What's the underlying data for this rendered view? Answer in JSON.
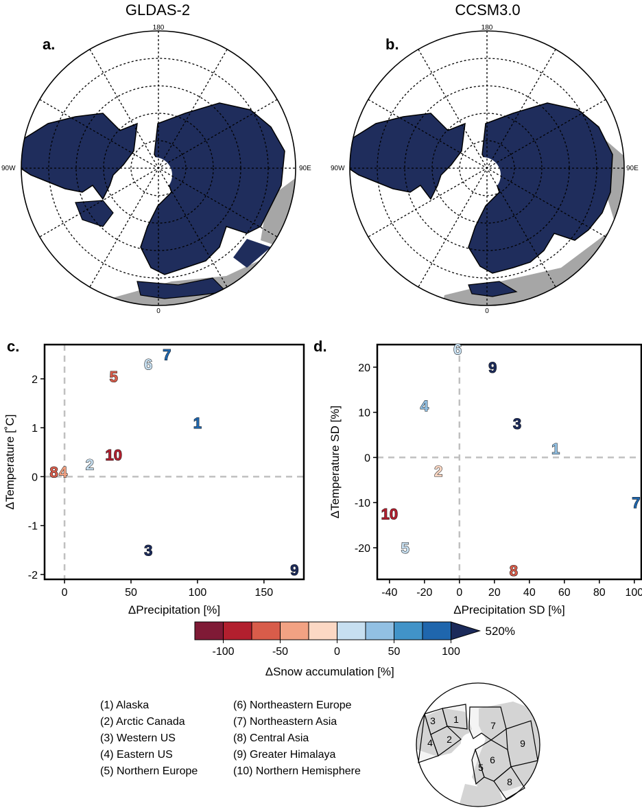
{
  "maps": [
    {
      "id": "a",
      "title": "GLDAS-2",
      "panel": "a.",
      "lon_labels": {
        "top": "180",
        "bottom": "0",
        "left": "90W",
        "right": "90E"
      }
    },
    {
      "id": "b",
      "title": "CCSM3.0",
      "panel": "b.",
      "lon_labels": {
        "top": "180",
        "bottom": "0",
        "left": "90W",
        "right": "90E"
      }
    }
  ],
  "colors": {
    "snow_fill": "#1f2d5c",
    "no_data": "#a6a6a6",
    "grid": "#000000",
    "zero_line": "#c0c0c0",
    "colorbar": [
      "#7f1a36",
      "#b21f2e",
      "#d85c4a",
      "#f2a283",
      "#fcd8c4",
      "#c7dff0",
      "#92c0e3",
      "#4193c8",
      "#1f66ad",
      "#1b2a5a"
    ]
  },
  "chart_data": [
    {
      "panel": "c.",
      "type": "scatter",
      "xlabel": "ΔPrecipitation [%]",
      "ylabel": "ΔTemperature [˚C]",
      "xlim": [
        -15,
        180
      ],
      "ylim": [
        -2.1,
        2.7
      ],
      "xticks": [
        0,
        50,
        100,
        150
      ],
      "yticks": [
        -2,
        -1,
        0,
        1,
        2
      ],
      "zero_lines": true,
      "points": [
        {
          "label": "1",
          "x": 100,
          "y": 1.1,
          "color": "#1f66ad"
        },
        {
          "label": "2",
          "x": 19,
          "y": 0.25,
          "color": "#c7dff0"
        },
        {
          "label": "3",
          "x": 63,
          "y": -1.5,
          "color": "#1b2a5a"
        },
        {
          "label": "4",
          "x": -1,
          "y": 0.1,
          "color": "#f2a283"
        },
        {
          "label": "5",
          "x": 37,
          "y": 2.05,
          "color": "#d85c4a"
        },
        {
          "label": "6",
          "x": 63,
          "y": 2.3,
          "color": "#c7dff0"
        },
        {
          "label": "7",
          "x": 77,
          "y": 2.5,
          "color": "#1f66ad"
        },
        {
          "label": "8",
          "x": -8,
          "y": 0.1,
          "color": "#d85c4a"
        },
        {
          "label": "9",
          "x": 173,
          "y": -1.9,
          "color": "#1b2a5a"
        },
        {
          "label": "10",
          "x": 37,
          "y": 0.45,
          "color": "#b21f2e"
        }
      ]
    },
    {
      "panel": "d.",
      "type": "scatter",
      "xlabel": "ΔPrecipitation SD [%]",
      "ylabel": "ΔTemperature SD [%]",
      "xlim": [
        -47,
        104
      ],
      "ylim": [
        -27,
        25
      ],
      "xticks": [
        -40,
        -20,
        0,
        20,
        40,
        60,
        80,
        100
      ],
      "yticks": [
        -20,
        -10,
        0,
        10,
        20
      ],
      "zero_lines": true,
      "points": [
        {
          "label": "1",
          "x": 55,
          "y": 2,
          "color": "#92c0e3"
        },
        {
          "label": "2",
          "x": -12,
          "y": -3,
          "color": "#fcd8c4"
        },
        {
          "label": "3",
          "x": 33,
          "y": 7.5,
          "color": "#1b2a5a"
        },
        {
          "label": "4",
          "x": -20,
          "y": 11.5,
          "color": "#92c0e3"
        },
        {
          "label": "5",
          "x": -31,
          "y": -20,
          "color": "#c7dff0"
        },
        {
          "label": "6",
          "x": -1,
          "y": 24,
          "color": "#c7dff0"
        },
        {
          "label": "7",
          "x": 101,
          "y": -10,
          "color": "#1f66ad"
        },
        {
          "label": "8",
          "x": 31,
          "y": -25,
          "color": "#d85c4a"
        },
        {
          "label": "9",
          "x": 19,
          "y": 20,
          "color": "#1b2a5a"
        },
        {
          "label": "10",
          "x": -40,
          "y": -12.5,
          "color": "#b21f2e"
        }
      ]
    }
  ],
  "colorbar": {
    "ticks": [
      "-100",
      "-50",
      "0",
      "50",
      "100"
    ],
    "extend_label": "520%",
    "label": "ΔSnow accumulation [%]"
  },
  "regions_left": [
    "(1) Alaska",
    "(2) Arctic Canada",
    "(3) Western US",
    "(4) Eastern US",
    "(5) Northern Europe"
  ],
  "regions_right": [
    "(6) Northeastern Europe",
    "(7) Northeastern Asia",
    "(8) Central Asia",
    "(9) Greater Himalaya",
    "(10) Northern Hemisphere"
  ],
  "region_map_labels": [
    "1",
    "2",
    "3",
    "4",
    "5",
    "6",
    "7",
    "8",
    "9"
  ]
}
